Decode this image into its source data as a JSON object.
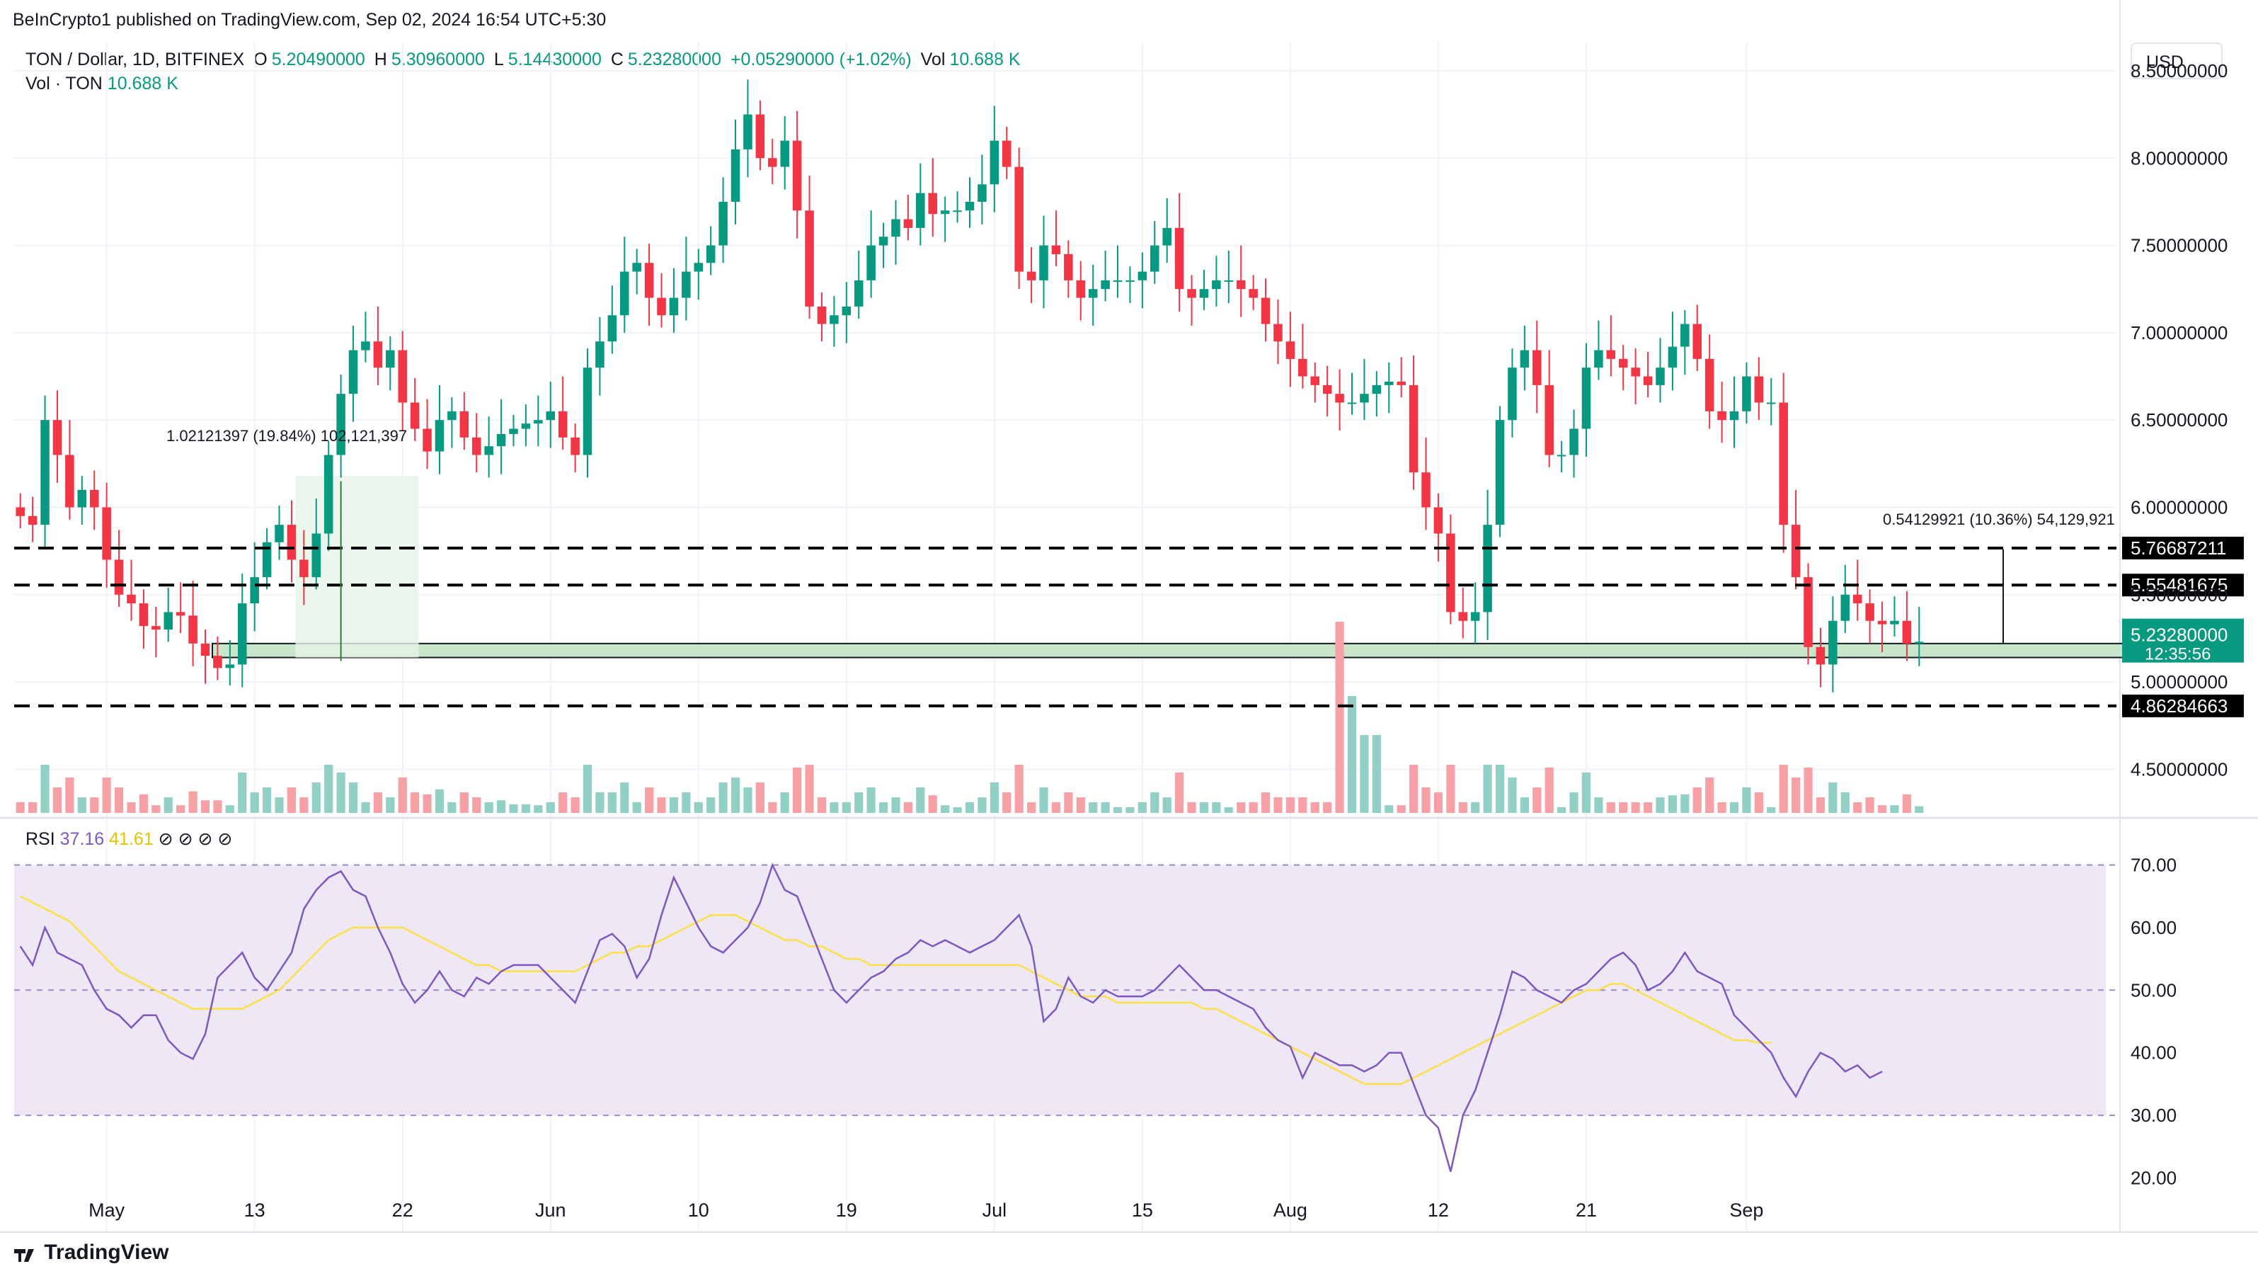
{
  "header": {
    "published_line": "BeInCrypto1 published on TradingView.com, Sep 02, 2024 16:54 UTC+5:30",
    "symbol": "TON / Dollar, 1D, BITFINEX",
    "o_label": "O",
    "o_value": "5.20490000",
    "h_label": "H",
    "h_value": "5.30960000",
    "l_label": "L",
    "l_value": "5.14430000",
    "c_label": "C",
    "c_value": "5.23280000",
    "change": "+0.05290000 (+1.02%)",
    "vol_label": "Vol",
    "vol_value": "10.688 K",
    "vol_series_label": "Vol · TON",
    "vol_series_value": "10.688 K",
    "currency": "USD"
  },
  "colors": {
    "up": "#089981",
    "down": "#f23645",
    "vol_up": "#92d0c6",
    "vol_down": "#f7a1a7",
    "rsi_line": "#7e57c2",
    "rsi_ma": "#fde047",
    "rsi_band": "#ede7f6",
    "zone_fill": "#c8e6c9",
    "price_tag": "#089981"
  },
  "rsi": {
    "label": "RSI",
    "value": "37.16",
    "ma_value": "41.61"
  },
  "annotations": {
    "measure_left": "1.02121397 (19.84%) 102,121,397",
    "measure_right": "0.54129921 (10.36%) 54,129,921",
    "levels": [
      {
        "price": 5.76687211,
        "label": "5.76687211"
      },
      {
        "price": 5.55481675,
        "label": "5.55481675"
      },
      {
        "price": 4.86284663,
        "label": "4.86284663"
      }
    ],
    "zone": [
      5.14,
      5.22
    ],
    "current_price": "5.23280000",
    "countdown": "12:35:56"
  },
  "footer": {
    "brand": "TradingView"
  },
  "chart_data": [
    {
      "type": "candlestick",
      "title": "TON / Dollar, 1D, BITFINEX",
      "ylim": [
        4.25,
        8.5
      ],
      "y_ticks": [
        "4.50000000",
        "5.00000000",
        "5.50000000",
        "6.00000000",
        "6.50000000",
        "7.00000000",
        "7.50000000",
        "8.00000000",
        "8.50000000"
      ],
      "x_ticks": [
        "May",
        "13",
        "22",
        "Jun",
        "10",
        "19",
        "Jul",
        "15",
        "Aug",
        "12",
        "21",
        "Sep"
      ],
      "grid": true,
      "close": [
        5.95,
        5.9,
        6.5,
        6.3,
        6.0,
        6.1,
        6.0,
        5.7,
        5.5,
        5.45,
        5.32,
        5.3,
        5.4,
        5.38,
        5.22,
        5.15,
        5.08,
        5.1,
        5.45,
        5.6,
        5.8,
        5.9,
        5.7,
        5.6,
        5.85,
        6.3,
        6.65,
        6.9,
        6.95,
        6.8,
        6.9,
        6.6,
        6.45,
        6.32,
        6.5,
        6.55,
        6.4,
        6.3,
        6.35,
        6.42,
        6.45,
        6.48,
        6.5,
        6.55,
        6.4,
        6.3,
        6.8,
        6.95,
        7.1,
        7.35,
        7.4,
        7.2,
        7.1,
        7.2,
        7.35,
        7.4,
        7.5,
        7.75,
        8.05,
        8.25,
        8.0,
        7.95,
        8.1,
        7.7,
        7.15,
        7.05,
        7.1,
        7.15,
        7.3,
        7.5,
        7.55,
        7.65,
        7.6,
        7.8,
        7.68,
        7.7,
        7.7,
        7.75,
        7.85,
        8.1,
        7.95,
        7.35,
        7.3,
        7.5,
        7.45,
        7.3,
        7.2,
        7.25,
        7.3,
        7.3,
        7.3,
        7.35,
        7.5,
        7.6,
        7.25,
        7.2,
        7.25,
        7.3,
        7.3,
        7.25,
        7.2,
        7.05,
        6.95,
        6.85,
        6.75,
        6.7,
        6.65,
        6.6,
        6.6,
        6.65,
        6.7,
        6.72,
        6.7,
        6.2,
        6.0,
        5.85,
        5.4,
        5.35,
        5.4,
        5.9,
        6.5,
        6.8,
        6.9,
        6.7,
        6.3,
        6.3,
        6.45,
        6.8,
        6.9,
        6.85,
        6.8,
        6.75,
        6.7,
        6.8,
        6.92,
        7.05,
        6.85,
        6.55,
        6.5,
        6.55,
        6.75,
        6.6,
        6.6,
        5.9,
        5.6,
        5.2,
        5.1,
        5.35,
        5.5,
        5.45,
        5.35,
        5.33,
        5.35,
        5.22,
        5.23
      ],
      "volume_note": "relative daily volume bars (red = down day, green = up day)"
    },
    {
      "type": "line",
      "title": "RSI",
      "ylim": [
        17,
        73
      ],
      "y_ticks": [
        "20.00",
        "30.00",
        "40.00",
        "50.00",
        "60.00",
        "70.00"
      ],
      "bands": [
        30,
        50,
        70
      ],
      "series": [
        {
          "name": "RSI",
          "values": [
            57,
            54,
            60,
            56,
            55,
            54,
            50,
            47,
            46,
            44,
            46,
            46,
            42,
            40,
            39,
            43,
            52,
            54,
            56,
            52,
            50,
            53,
            56,
            63,
            66,
            68,
            69,
            66,
            65,
            60,
            56,
            51,
            48,
            50,
            53,
            50,
            49,
            52,
            51,
            53,
            54,
            54,
            54,
            52,
            50,
            48,
            53,
            58,
            59,
            57,
            52,
            55,
            62,
            68,
            64,
            60,
            57,
            56,
            58,
            60,
            64,
            70,
            66,
            65,
            60,
            55,
            50,
            48,
            50,
            52,
            53,
            55,
            56,
            58,
            57,
            58,
            57,
            56,
            57,
            58,
            60,
            62,
            57,
            45,
            47,
            52,
            49,
            48,
            50,
            49,
            49,
            49,
            50,
            52,
            54,
            52,
            50,
            50,
            49,
            48,
            47,
            44,
            42,
            41,
            36,
            40,
            39,
            38,
            38,
            37,
            38,
            40,
            40,
            35,
            30,
            28,
            21,
            30,
            34,
            40,
            46,
            53,
            52,
            50,
            49,
            48,
            50,
            51,
            53,
            55,
            56,
            54,
            50,
            51,
            53,
            56,
            53,
            52,
            51,
            46,
            44,
            42,
            40,
            36,
            33,
            37,
            40,
            39,
            37,
            38,
            36,
            37
          ]
        },
        {
          "name": "RSI-based MA",
          "values": [
            65,
            64,
            63,
            62,
            61,
            59,
            57,
            55,
            53,
            52,
            51,
            50,
            49,
            48,
            47,
            47,
            47,
            47,
            47,
            48,
            49,
            50,
            52,
            54,
            56,
            58,
            59,
            60,
            60,
            60,
            60,
            60,
            59,
            58,
            57,
            56,
            55,
            54,
            54,
            53,
            53,
            53,
            53,
            53,
            53,
            53,
            54,
            55,
            56,
            56,
            57,
            57,
            58,
            59,
            60,
            61,
            62,
            62,
            62,
            61,
            60,
            59,
            58,
            58,
            57,
            57,
            56,
            55,
            55,
            54,
            54,
            54,
            54,
            54,
            54,
            54,
            54,
            54,
            54,
            54,
            54,
            54,
            53,
            52,
            51,
            50,
            49,
            49,
            49,
            48,
            48,
            48,
            48,
            48,
            48,
            48,
            47,
            47,
            46,
            45,
            44,
            43,
            42,
            41,
            40,
            39,
            38,
            37,
            36,
            35,
            35,
            35,
            35,
            36,
            37,
            38,
            39,
            40,
            41,
            42,
            43,
            44,
            45,
            46,
            47,
            48,
            49,
            50,
            50,
            51,
            51,
            50,
            49,
            48,
            47,
            46,
            45,
            44,
            43,
            42,
            42,
            41.6,
            41.61
          ]
        }
      ]
    }
  ]
}
